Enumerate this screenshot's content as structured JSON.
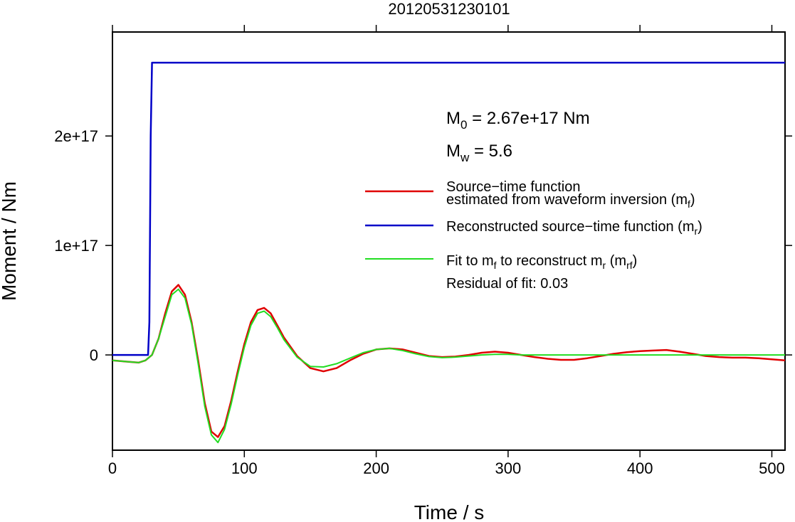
{
  "chart_data": {
    "type": "line",
    "title": "20120531230101",
    "xlabel": "Time / s",
    "ylabel": "Moment / Nm",
    "xlim": [
      0,
      510
    ],
    "ylim": [
      -8.7e+16,
      2.95e+17
    ],
    "xticks": [
      0,
      100,
      200,
      300,
      400,
      500
    ],
    "xtick_labels": [
      "0",
      "100",
      "200",
      "300",
      "400",
      "500"
    ],
    "yticks": [
      0,
      1e+17,
      2e+17
    ],
    "ytick_labels": [
      "0",
      "1e+17",
      "2e+17"
    ],
    "grid": false,
    "annotations": {
      "m0": {
        "pre": "M",
        "sub": "0",
        "post": " = 2.67e+17 Nm"
      },
      "mw": {
        "pre": "M",
        "sub": "w",
        "post": " = 5.6"
      },
      "residual": "Residual of fit: 0.03"
    },
    "legend": {
      "placement": "right",
      "entries": [
        {
          "line1": "Source−time function",
          "line2_pre": "estimated from waveform inversion (m",
          "line2_sub": "f",
          "line2_post": ")",
          "color": "#e00000"
        },
        {
          "pre": "Reconstructed source−time function (m",
          "sub": "r",
          "post": ")",
          "color": "#0000c8"
        },
        {
          "pre": "Fit to m",
          "sub": "f",
          "mid": " to reconstruct m",
          "sub2": "r",
          "mid2": " (m",
          "sub3": "rf",
          "post": ")",
          "color": "#22dd22"
        }
      ]
    },
    "series": [
      {
        "key": "mf",
        "color": "#e00000",
        "x": [
          0,
          10,
          20,
          25,
          30,
          35,
          40,
          45,
          50,
          55,
          60,
          65,
          70,
          75,
          80,
          85,
          90,
          95,
          100,
          105,
          110,
          115,
          120,
          125,
          130,
          140,
          150,
          160,
          170,
          180,
          190,
          200,
          210,
          220,
          230,
          240,
          250,
          260,
          270,
          280,
          290,
          300,
          310,
          320,
          330,
          340,
          350,
          360,
          370,
          380,
          390,
          400,
          410,
          420,
          430,
          440,
          450,
          460,
          470,
          480,
          490,
          500,
          510
        ],
        "y": [
          -5000000000000000.0,
          -6000000000000000.0,
          -7000000000000000.0,
          -5000000000000000.0,
          0,
          1.5e+16,
          3.8e+16,
          5.8e+16,
          6.4e+16,
          5.5e+16,
          3e+16,
          -5000000000000000.0,
          -4.4e+16,
          -7e+16,
          -7.5e+16,
          -6.5e+16,
          -4.2e+16,
          -1.5e+16,
          1e+16,
          3e+16,
          4.1e+16,
          4.3e+16,
          3.8e+16,
          2.7e+16,
          1.6e+16,
          -1000000000000000.0,
          -1.2e+16,
          -1.5e+16,
          -1.2e+16,
          -5000000000000000.0,
          1000000000000000.0,
          5000000000000000.0,
          6000000000000000.0,
          5000000000000000.0,
          2000000000000000.0,
          -1000000000000000.0,
          -2000000000000000.0,
          -1500000000000000.0,
          0,
          2000000000000000.0,
          3000000000000000.0,
          2000000000000000.0,
          0,
          -2000000000000000.0,
          -3500000000000000.0,
          -4500000000000000.0,
          -4500000000000000.0,
          -3000000000000000.0,
          -1000000000000000.0,
          1000000000000000.0,
          2500000000000000.0,
          3500000000000000.0,
          4000000000000000.0,
          4500000000000000.0,
          3000000000000000.0,
          1000000000000000.0,
          -1000000000000000.0,
          -2000000000000000.0,
          -2500000000000000.0,
          -2500000000000000.0,
          -3000000000000000.0,
          -4000000000000000.0,
          -5000000000000000.0
        ]
      },
      {
        "key": "mr",
        "color": "#0000c8",
        "x": [
          0,
          27,
          28,
          29,
          30,
          510
        ],
        "y": [
          0,
          0,
          3e+16,
          2e+17,
          2.67e+17,
          2.67e+17
        ]
      },
      {
        "key": "mrf",
        "color": "#22dd22",
        "x": [
          0,
          10,
          20,
          25,
          30,
          35,
          40,
          45,
          50,
          55,
          60,
          65,
          70,
          75,
          80,
          85,
          90,
          95,
          100,
          105,
          110,
          115,
          120,
          125,
          130,
          140,
          150,
          160,
          170,
          180,
          190,
          200,
          210,
          220,
          230,
          240,
          250,
          260,
          270,
          280,
          290,
          300,
          310,
          320,
          340,
          360,
          380,
          400,
          420,
          440,
          460,
          480,
          500,
          510
        ],
        "y": [
          -5000000000000000.0,
          -6000000000000000.0,
          -7000000000000000.0,
          -5000000000000000.0,
          0,
          1.5e+16,
          3.5e+16,
          5.5e+16,
          6e+16,
          5.2e+16,
          2.8e+16,
          -8000000000000000.0,
          -4.7e+16,
          -7.3e+16,
          -8e+16,
          -6.8e+16,
          -4.5e+16,
          -1.8e+16,
          7000000000000000.0,
          2.7e+16,
          3.8e+16,
          4e+16,
          3.5e+16,
          2.5e+16,
          1.4e+16,
          -2000000000000000.0,
          -1.05e+16,
          -1.1e+16,
          -8000000000000000.0,
          -3000000000000000.0,
          2000000000000000.0,
          5000000000000000.0,
          6000000000000000.0,
          4000000000000000.0,
          1000000000000000.0,
          -1500000000000000.0,
          -2500000000000000.0,
          -2000000000000000.0,
          -1000000000000000.0,
          0,
          500000000000000.0,
          500000000000000.0,
          0,
          0,
          0,
          0,
          0,
          0,
          0,
          0,
          0,
          0,
          0,
          0
        ]
      }
    ]
  }
}
